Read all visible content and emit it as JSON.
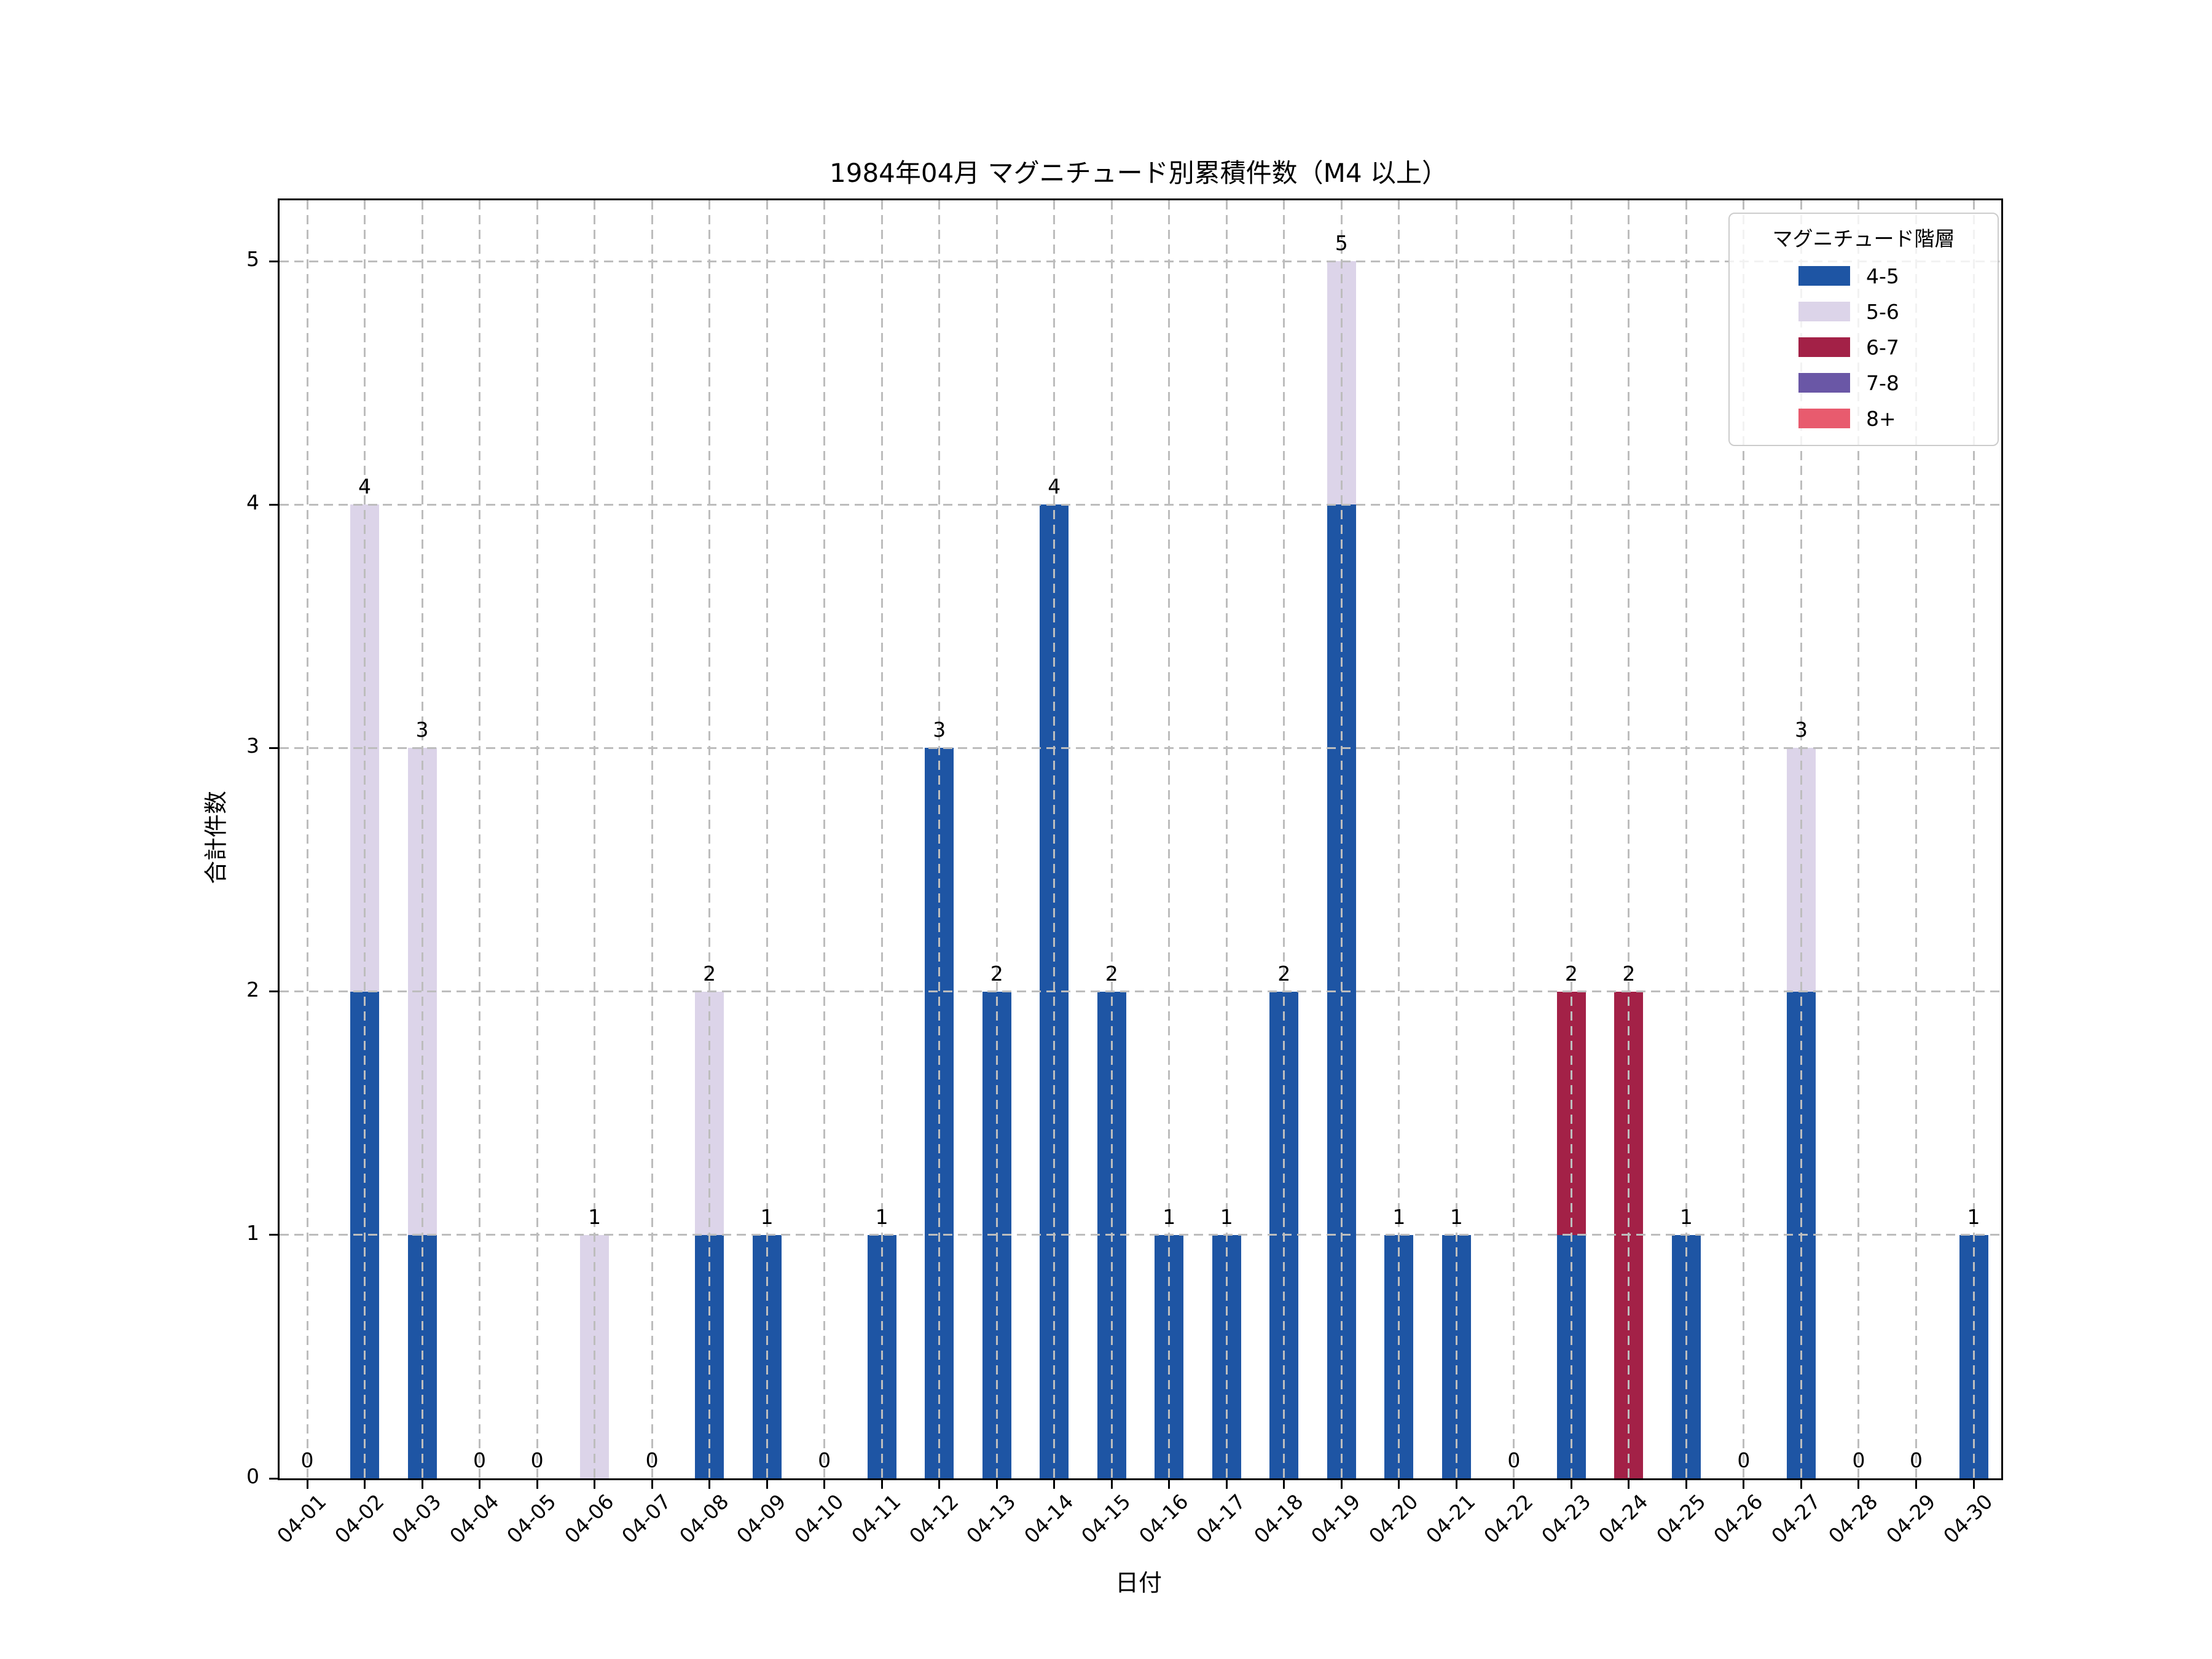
{
  "chart_data": {
    "type": "bar",
    "stacked": true,
    "title": "1984年04月 マグニチュード別累積件数（M4 以上）",
    "xlabel": "日付",
    "ylabel": "合計件数",
    "categories": [
      "04-01",
      "04-02",
      "04-03",
      "04-04",
      "04-05",
      "04-06",
      "04-07",
      "04-08",
      "04-09",
      "04-10",
      "04-11",
      "04-12",
      "04-13",
      "04-14",
      "04-15",
      "04-16",
      "04-17",
      "04-18",
      "04-19",
      "04-20",
      "04-21",
      "04-22",
      "04-23",
      "04-24",
      "04-25",
      "04-26",
      "04-27",
      "04-28",
      "04-29",
      "04-30"
    ],
    "series": [
      {
        "name": "4-5",
        "color": "#1e55a4",
        "values": [
          0,
          2,
          1,
          0,
          0,
          0,
          0,
          1,
          1,
          0,
          1,
          3,
          2,
          4,
          2,
          1,
          1,
          2,
          4,
          1,
          1,
          0,
          1,
          0,
          1,
          0,
          2,
          0,
          0,
          1
        ]
      },
      {
        "name": "5-6",
        "color": "#dcd4e9",
        "values": [
          0,
          2,
          2,
          0,
          0,
          1,
          0,
          1,
          0,
          0,
          0,
          0,
          0,
          0,
          0,
          0,
          0,
          0,
          1,
          0,
          0,
          0,
          0,
          0,
          0,
          0,
          1,
          0,
          0,
          0
        ]
      },
      {
        "name": "6-7",
        "color": "#a32147",
        "values": [
          0,
          0,
          0,
          0,
          0,
          0,
          0,
          0,
          0,
          0,
          0,
          0,
          0,
          0,
          0,
          0,
          0,
          0,
          0,
          0,
          0,
          0,
          1,
          2,
          0,
          0,
          0,
          0,
          0,
          0
        ]
      },
      {
        "name": "7-8",
        "color": "#6a57a6",
        "values": [
          0,
          0,
          0,
          0,
          0,
          0,
          0,
          0,
          0,
          0,
          0,
          0,
          0,
          0,
          0,
          0,
          0,
          0,
          0,
          0,
          0,
          0,
          0,
          0,
          0,
          0,
          0,
          0,
          0,
          0
        ]
      },
      {
        "name": "8+",
        "color": "#e85b6e",
        "values": [
          0,
          0,
          0,
          0,
          0,
          0,
          0,
          0,
          0,
          0,
          0,
          0,
          0,
          0,
          0,
          0,
          0,
          0,
          0,
          0,
          0,
          0,
          0,
          0,
          0,
          0,
          0,
          0,
          0,
          0
        ]
      }
    ],
    "totals": [
      0,
      4,
      3,
      0,
      0,
      1,
      0,
      2,
      1,
      0,
      1,
      3,
      2,
      4,
      2,
      1,
      1,
      2,
      5,
      1,
      1,
      0,
      2,
      2,
      1,
      0,
      3,
      0,
      0,
      1
    ],
    "yticks": [
      0,
      1,
      2,
      3,
      4,
      5
    ],
    "ylim": [
      0,
      5.25
    ],
    "grid": true,
    "grid_color": "#bdbdbd",
    "legend_position": "upper right",
    "legend": {
      "title": "マグニチュード階層",
      "items": [
        {
          "label": "4-5",
          "color": "#1e55a4"
        },
        {
          "label": "5-6",
          "color": "#dcd4e9"
        },
        {
          "label": "6-7",
          "color": "#a32147"
        },
        {
          "label": "7-8",
          "color": "#6a57a6"
        },
        {
          "label": "8+",
          "color": "#e85b6e"
        }
      ]
    }
  }
}
